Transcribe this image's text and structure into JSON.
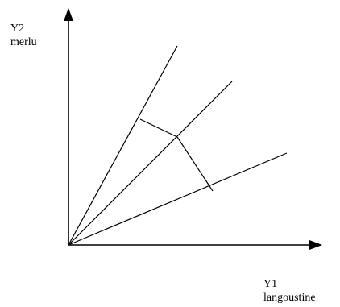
{
  "y_axis_label": {
    "line1": "Y2",
    "line2": "merlu"
  },
  "x_axis_label": {
    "line1": "Y1",
    "line2": "langoustine"
  },
  "colors": {
    "stroke": "#000000",
    "background": "#ffffff"
  }
}
